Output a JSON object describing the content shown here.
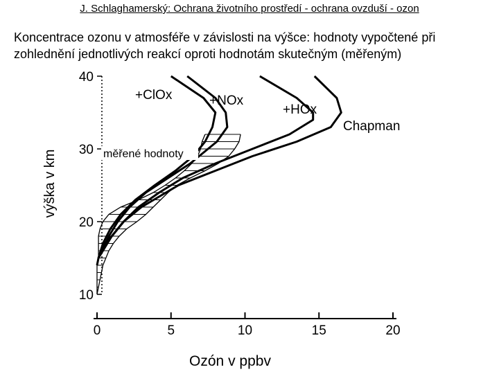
{
  "header": {
    "title": "J. Schlaghamerský: Ochrana životního prostředí - ochrana ovzduší - ozon",
    "text": "Koncentrace ozonu v atmosféře v závislosti na výšce: hodnoty vypočtené při zohlednění jednotlivých reakcí oproti hodnotám skutečným (měřeným)"
  },
  "chart_data": {
    "type": "line",
    "x_label": "Ozón v ppbv",
    "y_label": "výška v km",
    "xlim": [
      0,
      20
    ],
    "xticks": [
      0,
      5,
      10,
      15,
      20
    ],
    "ylim": [
      10,
      40
    ],
    "yticks": [
      10,
      20,
      30,
      40
    ],
    "color": "#000000",
    "series": [
      {
        "name": "+ClOx",
        "y": [
          40,
          37,
          35,
          33,
          31,
          29,
          27,
          25,
          23,
          21,
          19,
          17,
          15
        ],
        "x": [
          5.0,
          7.2,
          8.0,
          7.8,
          7.3,
          6.5,
          5.3,
          3.9,
          2.6,
          1.6,
          0.9,
          0.4,
          0.1
        ]
      },
      {
        "name": "+NOx",
        "y": [
          40,
          37,
          35,
          33,
          31,
          30,
          28,
          26,
          24,
          22,
          20,
          18,
          16,
          15
        ],
        "x": [
          6.1,
          8.0,
          8.7,
          8.8,
          8.1,
          7.5,
          6.3,
          4.8,
          3.3,
          2.2,
          1.4,
          0.8,
          0.3,
          0.1
        ]
      },
      {
        "name": "+HOx",
        "y": [
          40,
          37,
          35,
          34,
          32,
          30,
          28,
          26,
          24,
          22,
          20,
          18,
          16,
          15
        ],
        "x": [
          11.0,
          13.5,
          14.6,
          14.6,
          13.0,
          10.5,
          8.0,
          5.8,
          4.2,
          2.8,
          1.8,
          1.0,
          0.4,
          0.1
        ]
      },
      {
        "name": "Chapman",
        "y": [
          40,
          37,
          35,
          33,
          31,
          29,
          27,
          25,
          22,
          20,
          18,
          17,
          15,
          14
        ],
        "x": [
          14.7,
          16.2,
          16.5,
          15.8,
          13.5,
          10.5,
          8.0,
          5.5,
          3.0,
          1.8,
          1.0,
          0.5,
          0.1,
          0
        ]
      }
    ],
    "band": {
      "name": "měřené hodnoty",
      "y": [
        10,
        11,
        12,
        13,
        14,
        15,
        16,
        17,
        18,
        19,
        20,
        21,
        22,
        23,
        24,
        25,
        26,
        27,
        28,
        29,
        30,
        31,
        32
      ],
      "x_low": [
        0,
        0,
        0,
        0,
        0,
        0.1,
        0.1,
        0.1,
        0.1,
        0.2,
        0.4,
        0.8,
        1.6,
        2.8,
        3.8,
        4.6,
        5.3,
        5.9,
        6.4,
        6.8,
        7.0,
        7.1,
        7.3
      ],
      "x_high": [
        0,
        0.1,
        0.2,
        0.3,
        0.4,
        0.6,
        0.8,
        1.1,
        1.5,
        2.0,
        2.7,
        3.3,
        3.8,
        4.3,
        4.8,
        5.4,
        6.3,
        7.3,
        8.2,
        8.9,
        9.3,
        9.6,
        9.7
      ]
    }
  }
}
